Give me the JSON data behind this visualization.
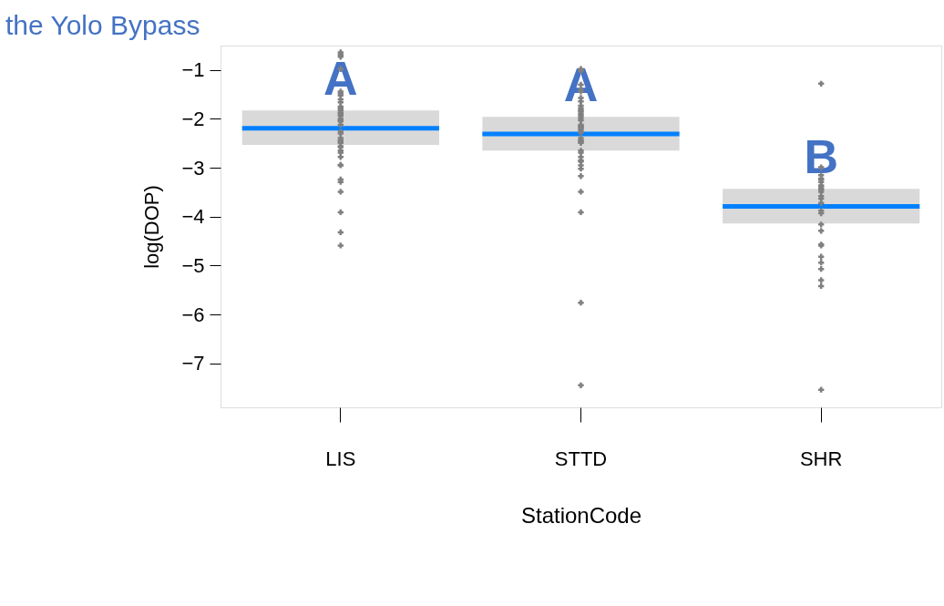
{
  "chart_data": {
    "type": "scatter",
    "title": "the Yolo Bypass",
    "xlabel": "StationCode",
    "ylabel": "log(DOP)",
    "categories": [
      "LIS",
      "STTD",
      "SHR"
    ],
    "ylim": [
      -7.9,
      -0.5
    ],
    "yticks": [
      -1,
      -2,
      -3,
      -4,
      -5,
      -6,
      -7
    ],
    "grid": false,
    "marker": "cross",
    "annotations": [
      "A",
      "A",
      "B"
    ],
    "series": [
      {
        "color": "#808080",
        "x": [
          "LIS",
          "LIS",
          "LIS",
          "LIS",
          "LIS",
          "LIS",
          "LIS",
          "LIS",
          "LIS",
          "LIS",
          "LIS",
          "LIS",
          "LIS",
          "LIS",
          "LIS",
          "LIS",
          "LIS",
          "LIS",
          "LIS",
          "LIS",
          "LIS",
          "LIS",
          "LIS",
          "LIS",
          "LIS",
          "LIS",
          "LIS",
          "LIS",
          "LIS",
          "LIS",
          "LIS",
          "LIS",
          "LIS",
          "LIS",
          "LIS",
          "LIS",
          "LIS",
          "LIS",
          "STTD",
          "STTD",
          "STTD",
          "STTD",
          "STTD",
          "STTD",
          "STTD",
          "STTD",
          "STTD",
          "STTD",
          "STTD",
          "STTD",
          "STTD",
          "STTD",
          "STTD",
          "STTD",
          "STTD",
          "STTD",
          "STTD",
          "STTD",
          "STTD",
          "STTD",
          "STTD",
          "STTD",
          "STTD",
          "STTD",
          "STTD",
          "STTD",
          "STTD",
          "STTD",
          "STTD",
          "STTD",
          "STTD",
          "STTD",
          "STTD",
          "STTD",
          "STTD",
          "SHR",
          "SHR",
          "SHR",
          "SHR",
          "SHR",
          "SHR",
          "SHR",
          "SHR",
          "SHR",
          "SHR",
          "SHR",
          "SHR",
          "SHR",
          "SHR",
          "SHR",
          "SHR",
          "SHR",
          "SHR",
          "SHR",
          "SHR",
          "SHR",
          "SHR",
          "SHR",
          "SHR",
          "SHR",
          "SHR"
        ],
        "values": [
          -0.64,
          -0.68,
          -0.73,
          -0.98,
          -1.44,
          -1.52,
          -1.6,
          -1.48,
          -1.66,
          -1.75,
          -1.78,
          -1.82,
          -1.87,
          -1.94,
          -1.9,
          -2.0,
          -2.05,
          -2.03,
          -2.12,
          -2.26,
          -2.3,
          -2.39,
          -2.46,
          -2.44,
          -2.49,
          -2.56,
          -2.69,
          -2.58,
          -2.65,
          -2.78,
          -2.95,
          -2.94,
          -3.24,
          -3.29,
          -3.49,
          -3.91,
          -4.32,
          -4.59,
          -1.02,
          -0.98,
          -1.3,
          -1.57,
          -1.41,
          -1.44,
          -1.64,
          -1.73,
          -1.78,
          -1.85,
          -1.83,
          -1.9,
          -1.94,
          -2.03,
          -1.98,
          -2.15,
          -2.19,
          -2.17,
          -2.12,
          -2.23,
          -2.28,
          -2.39,
          -2.44,
          -2.49,
          -2.46,
          -2.65,
          -2.69,
          -2.87,
          -2.78,
          -2.95,
          -2.85,
          -3.02,
          -3.17,
          -3.49,
          -3.91,
          -5.76,
          -7.45,
          -1.28,
          -2.99,
          -3.15,
          -3.24,
          -3.36,
          -3.22,
          -3.29,
          -3.42,
          -3.38,
          -3.49,
          -3.45,
          -3.58,
          -3.63,
          -3.72,
          -3.88,
          -3.93,
          -4.16,
          -4.29,
          -4.59,
          -4.94,
          -5.3,
          -5.42,
          -4.57,
          -4.82,
          -5.07,
          -7.54
        ]
      },
      {
        "type": "box",
        "color": "#d9d9d9",
        "boxes": [
          {
            "low": -2.53,
            "q1": -2.53,
            "median": -2.19,
            "q3": -1.83,
            "high": -1.83
          },
          {
            "low": -2.65,
            "q1": -2.65,
            "median": -2.31,
            "q3": -1.96,
            "high": -1.96
          },
          {
            "low": -4.14,
            "q1": -4.14,
            "median": -3.79,
            "q3": -3.43,
            "high": -3.43
          }
        ]
      }
    ]
  }
}
